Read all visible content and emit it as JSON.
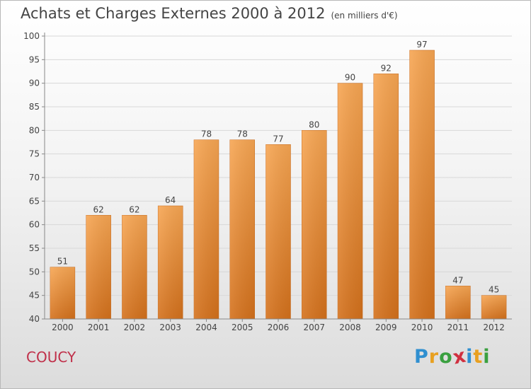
{
  "title": "Achats et Charges Externes 2000 à 2012",
  "subtitle": "(en milliers d'€)",
  "place": "COUCY",
  "logo": {
    "letters": [
      "P",
      "r",
      "o",
      "x",
      "i",
      "t",
      "i"
    ],
    "colors": [
      "#2f8fd0",
      "#e8a020",
      "#3aa040",
      "#d03040",
      "#2f8fd0",
      "#e8a020",
      "#3aa040"
    ]
  },
  "colors": {
    "bar_top": "#f7a653",
    "bar_bottom": "#d4711c",
    "grid": "#d8d8d8",
    "axis": "#888888"
  },
  "chart_data": {
    "type": "bar",
    "title": "Achats et Charges Externes 2000 à 2012",
    "subtitle": "(en milliers d'€)",
    "categories": [
      "2000",
      "2001",
      "2002",
      "2003",
      "2004",
      "2005",
      "2006",
      "2007",
      "2008",
      "2009",
      "2010",
      "2011",
      "2012"
    ],
    "values": [
      51,
      62,
      62,
      64,
      78,
      78,
      77,
      80,
      90,
      92,
      97,
      47,
      45
    ],
    "ylim": [
      40,
      100
    ],
    "yticks": [
      40,
      45,
      50,
      55,
      60,
      65,
      70,
      75,
      80,
      85,
      90,
      95,
      100
    ],
    "grid": true
  }
}
